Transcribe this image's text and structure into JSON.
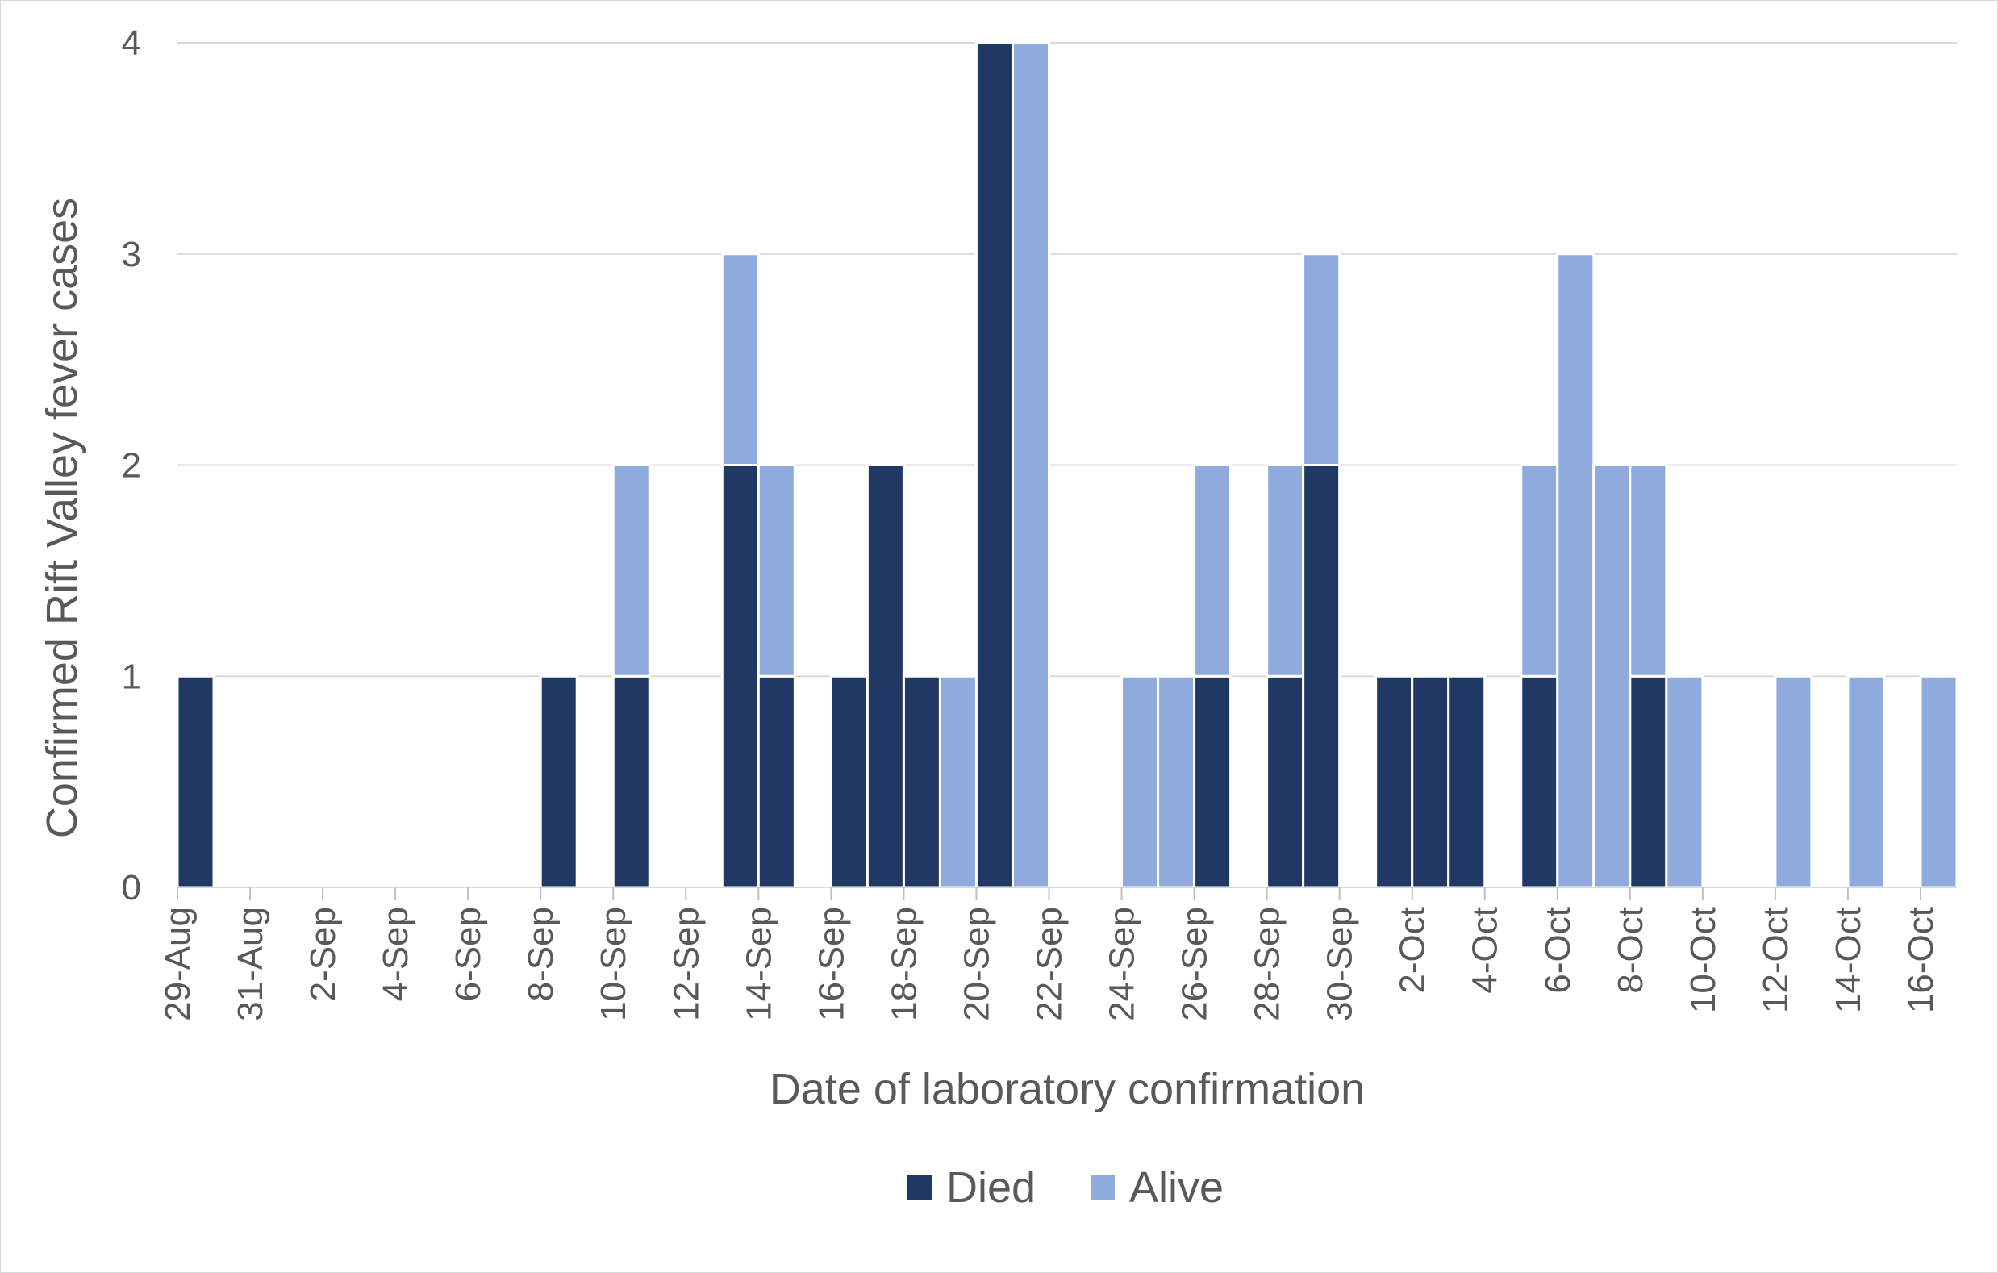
{
  "chart_data": {
    "type": "bar",
    "stacked": true,
    "title": "",
    "xlabel": "Date of laboratory confirmation",
    "ylabel": "Confirmed Rift Valley fever cases",
    "ylim": [
      0,
      4
    ],
    "y_ticks": [
      "0",
      "1",
      "2",
      "3",
      "4"
    ],
    "x_tick_labels": [
      "29-Aug",
      "31-Aug",
      "2-Sep",
      "4-Sep",
      "6-Sep",
      "8-Sep",
      "10-Sep",
      "12-Sep",
      "14-Sep",
      "16-Sep",
      "18-Sep",
      "20-Sep",
      "22-Sep",
      "24-Sep",
      "26-Sep",
      "28-Sep",
      "30-Sep",
      "2-Oct",
      "4-Oct",
      "6-Oct",
      "8-Oct",
      "10-Oct",
      "12-Oct",
      "14-Oct",
      "16-Oct"
    ],
    "grid": true,
    "legend": "bottom",
    "colors": {
      "Died": "#203864",
      "Alive": "#8faadc"
    },
    "categories": [
      "29-Aug",
      "30-Aug",
      "31-Aug",
      "1-Sep",
      "2-Sep",
      "3-Sep",
      "4-Sep",
      "5-Sep",
      "6-Sep",
      "7-Sep",
      "8-Sep",
      "9-Sep",
      "10-Sep",
      "11-Sep",
      "12-Sep",
      "13-Sep",
      "14-Sep",
      "15-Sep",
      "16-Sep",
      "17-Sep",
      "18-Sep",
      "19-Sep",
      "20-Sep",
      "21-Sep",
      "22-Sep",
      "23-Sep",
      "24-Sep",
      "25-Sep",
      "26-Sep",
      "27-Sep",
      "28-Sep",
      "29-Sep",
      "30-Sep",
      "1-Oct",
      "2-Oct",
      "3-Oct",
      "4-Oct",
      "5-Oct",
      "6-Oct",
      "7-Oct",
      "8-Oct",
      "9-Oct",
      "10-Oct",
      "11-Oct",
      "12-Oct",
      "13-Oct",
      "14-Oct",
      "15-Oct",
      "16-Oct"
    ],
    "series": [
      {
        "name": "Died",
        "values": [
          1,
          0,
          0,
          0,
          0,
          0,
          0,
          0,
          0,
          0,
          1,
          0,
          1,
          0,
          0,
          2,
          1,
          0,
          1,
          2,
          1,
          0,
          4,
          0,
          0,
          0,
          0,
          0,
          1,
          0,
          1,
          2,
          0,
          1,
          1,
          1,
          0,
          1,
          0,
          0,
          1,
          0,
          0,
          0,
          0,
          0,
          0,
          0,
          0
        ]
      },
      {
        "name": "Alive",
        "values": [
          0,
          0,
          0,
          0,
          0,
          0,
          0,
          0,
          0,
          0,
          0,
          0,
          1,
          0,
          0,
          1,
          1,
          0,
          0,
          0,
          0,
          1,
          0,
          4,
          0,
          0,
          1,
          1,
          1,
          0,
          1,
          1,
          0,
          0,
          0,
          0,
          0,
          1,
          3,
          2,
          1,
          1,
          0,
          0,
          1,
          0,
          1,
          0,
          1
        ]
      }
    ]
  }
}
